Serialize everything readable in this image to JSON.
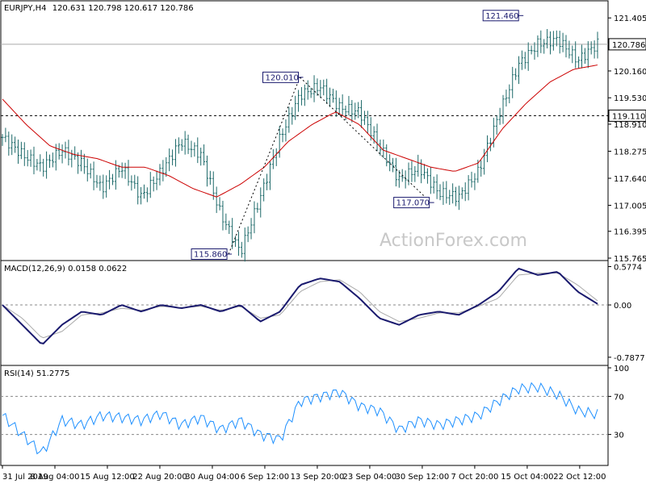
{
  "chart_data": [
    {
      "type": "candlestick",
      "title": "EURJPY,H4",
      "ohlc_text": "120.631 120.798 120.617 120.786",
      "last_price": "120.786",
      "y_ticks": [
        "121.405",
        "120.160",
        "119.530",
        "118.910",
        "118.275",
        "117.640",
        "117.005",
        "116.395",
        "115.765"
      ],
      "ylim": [
        115.765,
        121.75
      ],
      "hline_value": 119.11,
      "hline_label": "119.110",
      "annotations": [
        {
          "label": "121.460",
          "value": 121.46
        },
        {
          "label": "120.010",
          "value": 120.01
        },
        {
          "label": "117.070",
          "value": 117.07
        },
        {
          "label": "115.860",
          "value": 115.86
        }
      ],
      "watermark": "ActionForex.com",
      "close_anchors": [
        118.6,
        118.2,
        117.9,
        118.3,
        118.0,
        117.4,
        117.9,
        117.2,
        117.8,
        118.5,
        118.2,
        116.8,
        115.9,
        117.2,
        118.6,
        119.6,
        119.8,
        119.3,
        119.2,
        118.4,
        117.6,
        117.9,
        117.3,
        117.2,
        117.8,
        119.1,
        120.3,
        120.8,
        120.9,
        120.4,
        120.8
      ],
      "ma_anchors": [
        119.5,
        118.9,
        118.4,
        118.2,
        118.1,
        117.9,
        117.9,
        117.7,
        117.4,
        117.2,
        117.5,
        117.9,
        118.5,
        118.9,
        119.2,
        118.9,
        118.3,
        118.1,
        117.9,
        117.8,
        118.0,
        118.8,
        119.4,
        119.9,
        120.2,
        120.3
      ]
    },
    {
      "type": "line",
      "title": "MACD(12,26,9) 0.0158 0.0622",
      "y_ticks": [
        "0.5774",
        "0.00",
        "-0.7877"
      ],
      "ylim": [
        -0.85,
        0.62
      ],
      "series": [
        {
          "values": [
            0.0,
            -0.3,
            -0.6,
            -0.3,
            -0.1,
            -0.15,
            0.0,
            -0.1,
            0.0,
            -0.05,
            0.0,
            -0.1,
            0.0,
            -0.25,
            -0.1,
            0.3,
            0.4,
            0.35,
            0.1,
            -0.2,
            -0.3,
            -0.15,
            -0.1,
            -0.15,
            0.0,
            0.2,
            0.55,
            0.45,
            0.5,
            0.2,
            0.016
          ]
        },
        {
          "values": [
            0.0,
            -0.2,
            -0.5,
            -0.4,
            -0.15,
            -0.12,
            -0.05,
            -0.08,
            -0.02,
            -0.04,
            -0.02,
            -0.08,
            -0.02,
            -0.2,
            -0.15,
            0.2,
            0.35,
            0.38,
            0.2,
            -0.1,
            -0.25,
            -0.2,
            -0.12,
            -0.12,
            -0.02,
            0.1,
            0.45,
            0.48,
            0.48,
            0.3,
            0.062
          ]
        }
      ]
    },
    {
      "type": "line",
      "title": "RSI(14) 51.2775",
      "y_ticks": [
        "100",
        "70",
        "30"
      ],
      "ylim": [
        0,
        100
      ],
      "series": [
        {
          "values": [
            50,
            30,
            10,
            45,
            40,
            50,
            48,
            45,
            52,
            40,
            48,
            35,
            45,
            30,
            25,
            65,
            70,
            75,
            60,
            55,
            35,
            45,
            40,
            45,
            50,
            65,
            78,
            80,
            72,
            55,
            51.3
          ]
        }
      ]
    }
  ],
  "x_labels": [
    "31 Jul 2019",
    "8 Aug 04:00",
    "15 Aug 12:00",
    "22 Aug 20:00",
    "30 Aug 04:00",
    "6 Sep 12:00",
    "13 Sep 20:00",
    "23 Sep 04:00",
    "30 Sep 12:00",
    "7 Oct 20:00",
    "15 Oct 04:00",
    "22 Oct 12:00"
  ],
  "colors": {
    "background": "#ffffff",
    "candle": "#1e6a6a",
    "ma": "#cc0000",
    "macd": "#1a1a6e",
    "signal": "#aaaaaa",
    "rsi": "#1e90ff",
    "grid": "#999999",
    "label_box": "#1a1a6e",
    "watermark": "#c8c8c8"
  }
}
